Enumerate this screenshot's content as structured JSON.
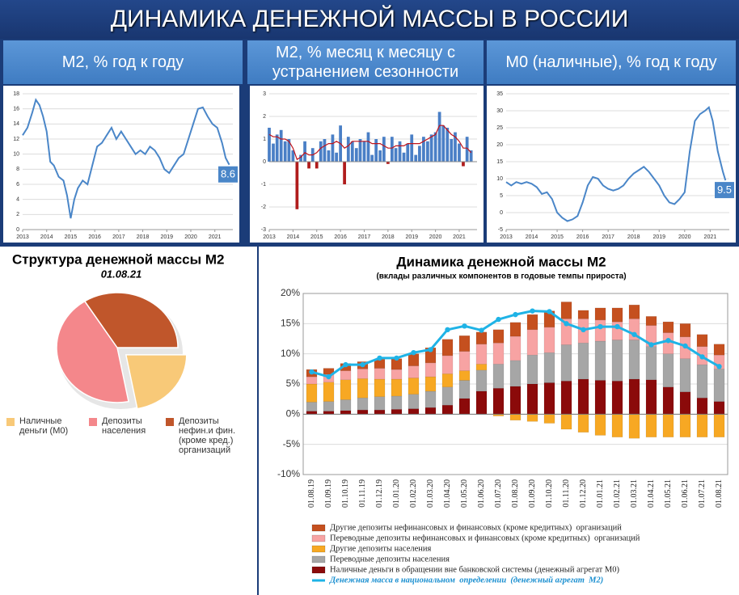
{
  "header": {
    "title": "ДИНАМИКА ДЕНЕЖНОЙ МАССЫ В РОССИИ"
  },
  "chart_data": [
    {
      "type": "line",
      "title": "М2, % год к году",
      "x": [
        2013.0,
        2013.2,
        2013.4,
        2013.55,
        2013.7,
        2013.85,
        2014.0,
        2014.15,
        2014.3,
        2014.5,
        2014.7,
        2014.85,
        2015.0,
        2015.15,
        2015.3,
        2015.5,
        2015.7,
        2015.9,
        2016.1,
        2016.3,
        2016.5,
        2016.7,
        2016.9,
        2017.1,
        2017.3,
        2017.5,
        2017.7,
        2017.9,
        2018.1,
        2018.3,
        2018.5,
        2018.7,
        2018.9,
        2019.1,
        2019.3,
        2019.5,
        2019.7,
        2019.9,
        2020.1,
        2020.3,
        2020.5,
        2020.7,
        2020.9,
        2021.1,
        2021.3,
        2021.45,
        2021.6
      ],
      "series": [
        {
          "color": "#4a86c8",
          "values": [
            12.5,
            13.5,
            15.5,
            17.2,
            16.5,
            15,
            13,
            9,
            8.5,
            7,
            6.5,
            4.5,
            1.5,
            4,
            5.5,
            6.5,
            6,
            8.5,
            11,
            11.5,
            12.5,
            13.5,
            12,
            13,
            12,
            11,
            10,
            10.5,
            10,
            11,
            10.5,
            9.5,
            8,
            7.5,
            8.5,
            9.5,
            10,
            12,
            14,
            16,
            16.2,
            15,
            14,
            13.5,
            11.5,
            9.5,
            8.6
          ]
        }
      ],
      "annotation": "8.6",
      "xlim": [
        2013,
        2021.75
      ],
      "xticks": [
        2013,
        2014,
        2015,
        2016,
        2017,
        2018,
        2019,
        2020,
        2021
      ],
      "ylim": [
        0,
        18
      ],
      "yticks": [
        0,
        2,
        4,
        6,
        8,
        10,
        12,
        14,
        16,
        18
      ],
      "grid": true
    },
    {
      "type": "bar",
      "title": "М2, % месяц к месяцу с устранением сезонности",
      "x": [
        2013,
        2013.17,
        2013.33,
        2013.5,
        2013.67,
        2013.83,
        2014,
        2014.17,
        2014.33,
        2014.5,
        2014.67,
        2014.83,
        2015,
        2015.17,
        2015.33,
        2015.5,
        2015.67,
        2015.83,
        2016,
        2016.17,
        2016.33,
        2016.5,
        2016.67,
        2016.83,
        2017,
        2017.17,
        2017.33,
        2017.5,
        2017.67,
        2017.83,
        2018,
        2018.17,
        2018.33,
        2018.5,
        2018.67,
        2018.83,
        2019,
        2019.17,
        2019.33,
        2019.5,
        2019.67,
        2019.83,
        2020,
        2020.17,
        2020.33,
        2020.5,
        2020.67,
        2020.83,
        2021,
        2021.17,
        2021.33,
        2021.5
      ],
      "series": [
        {
          "type": "bar",
          "color": "#4a7fc6",
          "negative_color": "#b01c1c",
          "values": [
            1.5,
            0.8,
            1.2,
            1.4,
            0.9,
            1.0,
            0.5,
            -2.1,
            0.3,
            0.9,
            -0.3,
            0.6,
            -0.3,
            0.9,
            1.0,
            0.5,
            1.2,
            0.4,
            1.6,
            -1.0,
            1.1,
            0.9,
            0.6,
            1.0,
            0.9,
            1.3,
            0.3,
            1.0,
            0.5,
            1.1,
            -0.1,
            1.1,
            0.6,
            0.9,
            0.4,
            0.8,
            1.2,
            0.3,
            0.7,
            1.1,
            0.9,
            1.2,
            1.3,
            2.2,
            1.6,
            1.5,
            1.0,
            1.3,
            0.8,
            -0.2,
            1.1,
            0.5
          ]
        },
        {
          "type": "line",
          "color": "#c0141c",
          "values": [
            1.2,
            1.1,
            1.1,
            1.0,
            1.0,
            0.9,
            0.6,
            0.1,
            0.2,
            0.4,
            0.3,
            0.3,
            0.4,
            0.6,
            0.7,
            0.8,
            0.8,
            0.9,
            0.8,
            0.6,
            0.7,
            0.9,
            0.9,
            0.9,
            0.9,
            0.9,
            0.8,
            0.8,
            0.8,
            0.7,
            0.6,
            0.6,
            0.7,
            0.7,
            0.7,
            0.8,
            0.8,
            0.8,
            0.8,
            0.9,
            1.0,
            1.1,
            1.2,
            1.6,
            1.6,
            1.4,
            1.2,
            1.1,
            0.9,
            0.6,
            0.6,
            0.4
          ]
        }
      ],
      "xlim": [
        2013,
        2021.75
      ],
      "xticks": [
        2013,
        2014,
        2015,
        2016,
        2017,
        2018,
        2019,
        2020,
        2021
      ],
      "ylim": [
        -3,
        3
      ],
      "yticks": [
        -3,
        -2,
        -1,
        0,
        1,
        2,
        3
      ],
      "grid": true
    },
    {
      "type": "line",
      "title": "М0 (наличные), % год к году",
      "x": [
        2013.0,
        2013.2,
        2013.4,
        2013.6,
        2013.8,
        2014.0,
        2014.2,
        2014.4,
        2014.6,
        2014.8,
        2015.0,
        2015.2,
        2015.4,
        2015.6,
        2015.8,
        2016.0,
        2016.2,
        2016.4,
        2016.6,
        2016.8,
        2017.0,
        2017.2,
        2017.4,
        2017.6,
        2017.8,
        2018.0,
        2018.2,
        2018.4,
        2018.6,
        2018.8,
        2019.0,
        2019.2,
        2019.4,
        2019.6,
        2019.8,
        2020.0,
        2020.2,
        2020.4,
        2020.6,
        2020.8,
        2020.95,
        2021.1,
        2021.3,
        2021.5,
        2021.6
      ],
      "series": [
        {
          "color": "#4a86c8",
          "values": [
            9,
            8,
            9,
            8.5,
            9,
            8.5,
            7.5,
            5.5,
            6,
            4,
            0,
            -1.5,
            -2.5,
            -2,
            -1,
            3,
            8,
            10.5,
            10,
            8,
            7,
            6.5,
            7,
            8,
            10,
            11.5,
            12.5,
            13.5,
            12,
            10,
            8,
            5,
            3,
            2.5,
            4,
            6,
            18,
            27,
            29,
            30,
            31,
            27,
            18,
            12,
            9.5
          ]
        }
      ],
      "annotation": "9.5",
      "xlim": [
        2013,
        2021.75
      ],
      "xticks": [
        2013,
        2014,
        2015,
        2016,
        2017,
        2018,
        2019,
        2020,
        2021
      ],
      "ylim": [
        -5,
        35
      ],
      "yticks": [
        -5,
        0,
        5,
        10,
        15,
        20,
        25,
        30,
        35
      ],
      "grid": true
    },
    {
      "type": "pie",
      "title": "Структура денежной массы М2",
      "subtitle": "01.08.21",
      "categories": [
        "Наличные деньги (М0)",
        "Депозиты населения",
        "Депозиты нефин.и фин. (кроме кред.) организаций"
      ],
      "values": [
        22,
        44,
        34
      ],
      "colors": [
        "#f8c978",
        "#f4878b",
        "#c0562b"
      ],
      "explode": [
        true,
        false,
        false
      ]
    },
    {
      "type": "stacked_bar",
      "title": "Динамика денежной массы М2",
      "subtitle": "(вклады различных компонентов в годовые темпы прироста)",
      "categories": [
        "01.08.19",
        "01.09.19",
        "01.10.19",
        "01.11.19",
        "01.12.19",
        "01.01.20",
        "01.02.20",
        "01.03.20",
        "01.04.20",
        "01.05.20",
        "01.06.20",
        "01.07.20",
        "01.08.20",
        "01.09.20",
        "01.10.20",
        "01.11.20",
        "01.12.20",
        "01.01.21",
        "01.02.21",
        "01.03.21",
        "01.04.21",
        "01.05.21",
        "01.06.21",
        "01.07.21",
        "01.08.21"
      ],
      "series": [
        {
          "name": "Другие депозиты нефинансовых и финансовых (кроме кредитных)  организаций",
          "type": "bar",
          "color": "#c5501f",
          "values": [
            1.2,
            1.0,
            1.2,
            1.2,
            1.5,
            1.8,
            2.0,
            2.5,
            2.7,
            2.6,
            2.0,
            2.2,
            2.3,
            2.5,
            2.7,
            2.8,
            1.4,
            2.0,
            2.3,
            2.3,
            1.5,
            1.8,
            2.2,
            2.0,
            1.8
          ]
        },
        {
          "name": "Переводные депозиты нефинансовых и финансовых (кроме кредитных)  организаций",
          "type": "bar",
          "color": "#f7a3a3",
          "values": [
            1.2,
            1.3,
            1.5,
            1.6,
            1.8,
            1.6,
            2.0,
            2.3,
            3.0,
            3.2,
            3.3,
            3.5,
            4.0,
            4.2,
            4.2,
            4.3,
            4.0,
            3.5,
            3.0,
            3.5,
            3.5,
            3.5,
            3.6,
            3.0,
            2.3
          ]
        },
        {
          "name": "Другие депозиты населения",
          "type": "bar",
          "color": "#f7a823",
          "values": [
            3.0,
            3.2,
            3.3,
            3.2,
            2.9,
            2.8,
            2.7,
            2.4,
            2.2,
            1.6,
            1.0,
            -0.3,
            -1.0,
            -1.2,
            -1.5,
            -2.5,
            -3.0,
            -3.5,
            -3.8,
            -4.0,
            -3.8,
            -3.8,
            -3.8,
            -3.8,
            -3.8
          ]
        },
        {
          "name": "Переводные депозиты населения",
          "type": "bar",
          "color": "#a6a6a6",
          "values": [
            1.5,
            1.6,
            1.8,
            2.0,
            2.2,
            2.2,
            2.4,
            2.7,
            3.0,
            3.0,
            3.5,
            4.0,
            4.3,
            4.8,
            5.0,
            6.0,
            6.0,
            6.5,
            6.8,
            6.5,
            5.5,
            5.5,
            5.5,
            5.5,
            5.4
          ]
        },
        {
          "name": "Наличные деньги в обращении вне банковской системы (денежный агрегат М0)",
          "type": "bar",
          "color": "#8b0a0a",
          "values": [
            0.5,
            0.5,
            0.6,
            0.7,
            0.7,
            0.8,
            0.9,
            1.1,
            1.5,
            2.6,
            3.8,
            4.3,
            4.6,
            5.0,
            5.2,
            5.5,
            5.8,
            5.6,
            5.5,
            5.8,
            5.7,
            4.5,
            3.7,
            2.7,
            2.1
          ]
        },
        {
          "name": "Денежная масса в национальном  определении  (денежный агрегат  М2)",
          "type": "line",
          "color": "#1fb3e6",
          "values": [
            7.0,
            6.2,
            8.2,
            8.2,
            9.3,
            9.3,
            10.2,
            10.7,
            14.0,
            14.6,
            13.9,
            15.7,
            16.5,
            17.1,
            17.0,
            15.0,
            14.0,
            14.5,
            14.5,
            13.2,
            11.5,
            12.2,
            11.3,
            9.5,
            7.9
          ]
        }
      ],
      "ylim": [
        -10,
        20
      ],
      "yticks": [
        {
          "value": -10,
          "label": "-10%"
        },
        {
          "value": -5,
          "label": "-5%"
        },
        {
          "value": 0,
          "label": "0%"
        },
        {
          "value": 5,
          "label": "5%"
        },
        {
          "value": 10,
          "label": "10%"
        },
        {
          "value": 15,
          "label": "15%"
        },
        {
          "value": 20,
          "label": "20%"
        }
      ],
      "grid": true
    }
  ]
}
